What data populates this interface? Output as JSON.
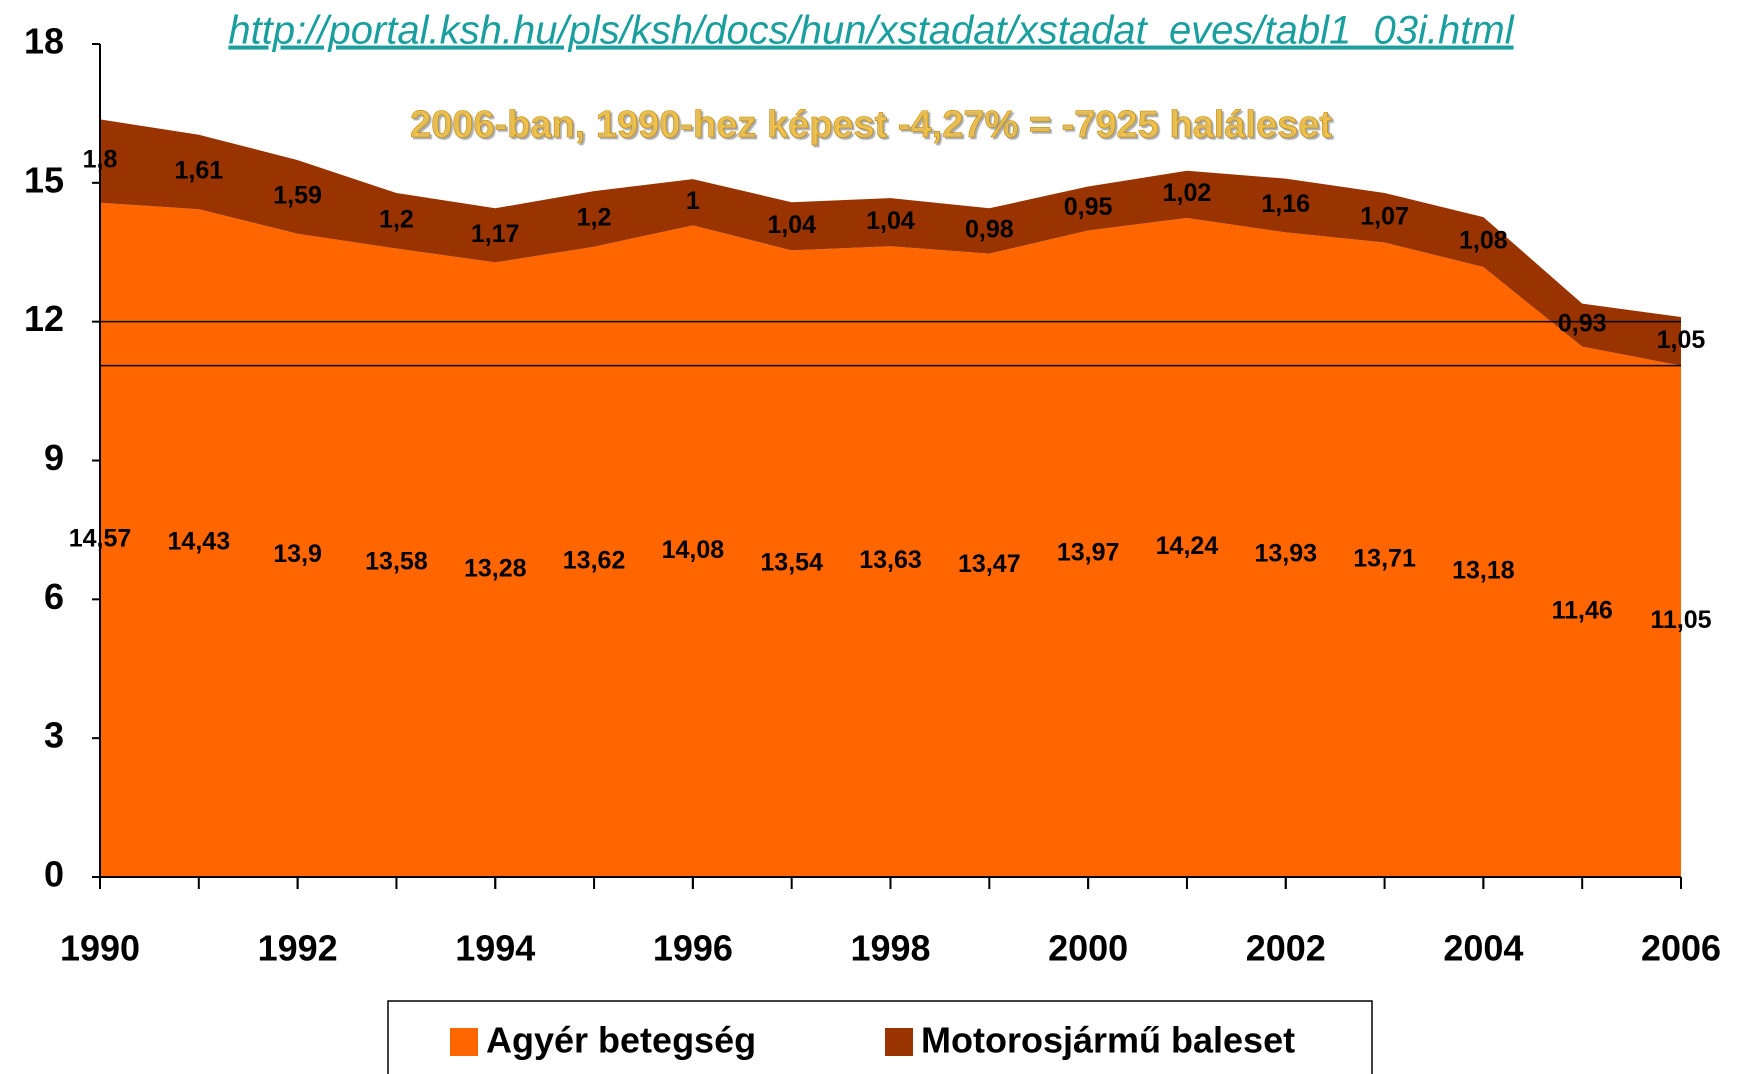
{
  "chart_data": {
    "type": "stacked_area",
    "source": "http://portal.ksh.hu/pls/ksh/docs/hun/xstadat/xstadat_eves/tabl1_03i.html",
    "annotation": "2006-ban, 1990-hez képest -4,27% = -7925 haláleset",
    "x": [
      1990,
      1991,
      1992,
      1993,
      1994,
      1995,
      1996,
      1997,
      1998,
      1999,
      2000,
      2001,
      2002,
      2003,
      2004,
      2005,
      2006
    ],
    "xlim": [
      1990,
      2006
    ],
    "xticks": [
      1990,
      1992,
      1994,
      1996,
      1998,
      2000,
      2002,
      2004,
      2006
    ],
    "ylim": [
      0,
      18
    ],
    "yticks": [
      0,
      3,
      6,
      9,
      12,
      15,
      18
    ],
    "hlines": [
      12,
      11.05
    ],
    "legend": "bottom",
    "series": [
      {
        "name": "Agyér betegség",
        "color": "#ff6600",
        "values": [
          14.57,
          14.43,
          13.9,
          13.58,
          13.28,
          13.62,
          14.08,
          13.54,
          13.63,
          13.47,
          13.97,
          14.24,
          13.93,
          13.71,
          13.18,
          11.46,
          11.05
        ],
        "value_labels": [
          "14,57",
          "14,43",
          "13,9",
          "13,58",
          "13,28",
          "13,62",
          "14,08",
          "13,54",
          "13,63",
          "13,47",
          "13,97",
          "14,24",
          "13,93",
          "13,71",
          "13,18",
          "11,46",
          "11,05"
        ]
      },
      {
        "name": "Motorosjármű baleset",
        "color": "#993300",
        "values": [
          1.8,
          1.61,
          1.59,
          1.2,
          1.17,
          1.2,
          1,
          1.04,
          1.04,
          0.98,
          0.95,
          1.02,
          1.16,
          1.07,
          1.08,
          0.93,
          1.05
        ],
        "value_labels": [
          "1,8",
          "1,61",
          "1,59",
          "1,2",
          "1,17",
          "1,2",
          "1",
          "1,04",
          "1,04",
          "0,98",
          "0,95",
          "1,02",
          "1,16",
          "1,07",
          "1,08",
          "0,93",
          "1,05"
        ]
      }
    ]
  }
}
